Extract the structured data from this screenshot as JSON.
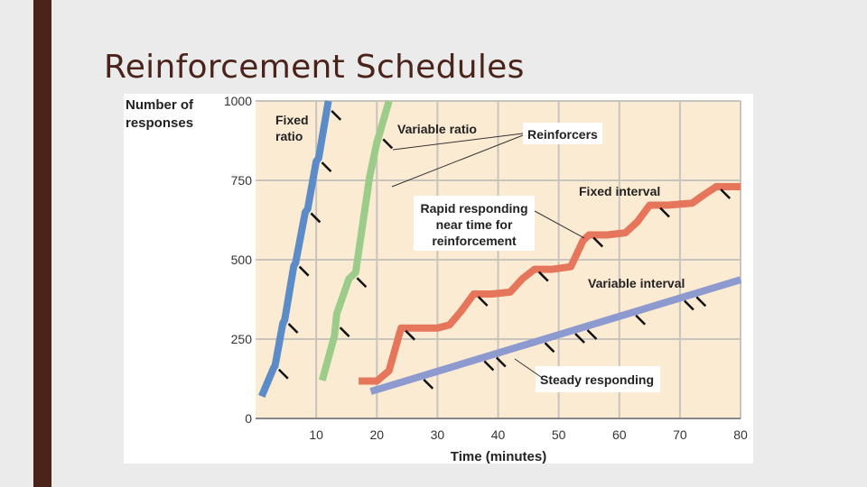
{
  "slide": {
    "title": "Reinforcement Schedules"
  },
  "colors": {
    "plot_bg": "#fcebd3",
    "grid": "#c9c3bd",
    "axis": "#888888",
    "fixed_ratio": "#5b8cc7",
    "variable_ratio": "#9ccc8a",
    "fixed_interval": "#e5765c",
    "variable_interval": "#8d9ad0",
    "reinforcer_mark": "#111111",
    "accent_bar": "#4a241b"
  },
  "chart_data": {
    "type": "line",
    "xlabel": "Time (minutes)",
    "ylabel": "Number of responses",
    "xlim": [
      0,
      80
    ],
    "ylim": [
      0,
      1000
    ],
    "x_ticks": [
      10,
      20,
      30,
      40,
      50,
      60,
      70,
      80
    ],
    "y_ticks": [
      0,
      250,
      500,
      750,
      1000
    ],
    "grid": true,
    "series": [
      {
        "name": "Fixed ratio",
        "color_key": "fixed_ratio",
        "label_lines": [
          "Fixed",
          "ratio"
        ],
        "points": [
          [
            1,
            70
          ],
          [
            3,
            160
          ],
          [
            3.2,
            165
          ],
          [
            4.5,
            300
          ],
          [
            4.8,
            310
          ],
          [
            6.3,
            480
          ],
          [
            6.6,
            490
          ],
          [
            8.2,
            650
          ],
          [
            8.6,
            660
          ],
          [
            10,
            810
          ],
          [
            10.4,
            820
          ],
          [
            12,
            1000
          ]
        ],
        "reinforcers": [
          3.1,
          4.7,
          6.5,
          8.4,
          10.2,
          11.8
        ]
      },
      {
        "name": "Variable ratio",
        "color_key": "variable_ratio",
        "label_lines": [
          "Variable ratio"
        ],
        "points": [
          [
            11,
            120
          ],
          [
            13,
            260
          ],
          [
            13.4,
            330
          ],
          [
            15.4,
            440
          ],
          [
            16.5,
            460
          ],
          [
            18.8,
            760
          ],
          [
            20,
            870
          ],
          [
            20.5,
            900
          ],
          [
            22,
            1000
          ]
        ],
        "reinforcers": [
          13.2,
          16,
          20.3
        ]
      },
      {
        "name": "Fixed interval",
        "color_key": "fixed_interval",
        "label_lines": [
          "Fixed interval"
        ],
        "points": [
          [
            17,
            118
          ],
          [
            20,
            118
          ],
          [
            22,
            150
          ],
          [
            24,
            285
          ],
          [
            26,
            285
          ],
          [
            30,
            285
          ],
          [
            32,
            295
          ],
          [
            34,
            340
          ],
          [
            36,
            392
          ],
          [
            39,
            392
          ],
          [
            42,
            398
          ],
          [
            44,
            440
          ],
          [
            46,
            470
          ],
          [
            49,
            470
          ],
          [
            52,
            478
          ],
          [
            54,
            560
          ],
          [
            55,
            578
          ],
          [
            58,
            578
          ],
          [
            61,
            585
          ],
          [
            63,
            620
          ],
          [
            65,
            672
          ],
          [
            68,
            672
          ],
          [
            72,
            678
          ],
          [
            74,
            705
          ],
          [
            76,
            730
          ],
          [
            80,
            730
          ]
        ],
        "reinforcers": [
          24,
          36,
          46,
          55,
          66,
          76
        ]
      },
      {
        "name": "Variable interval",
        "color_key": "variable_interval",
        "label_lines": [
          "Variable interval"
        ],
        "points": [
          [
            19,
            85
          ],
          [
            80,
            437
          ]
        ],
        "reinforcers": [
          27,
          37,
          39,
          47,
          52,
          54,
          62,
          70,
          72
        ]
      }
    ],
    "annotations": {
      "reinforcers": "Reinforcers",
      "rapid": [
        "Rapid responding",
        "near time for",
        "reinforcement"
      ],
      "steady": "Steady responding"
    }
  }
}
